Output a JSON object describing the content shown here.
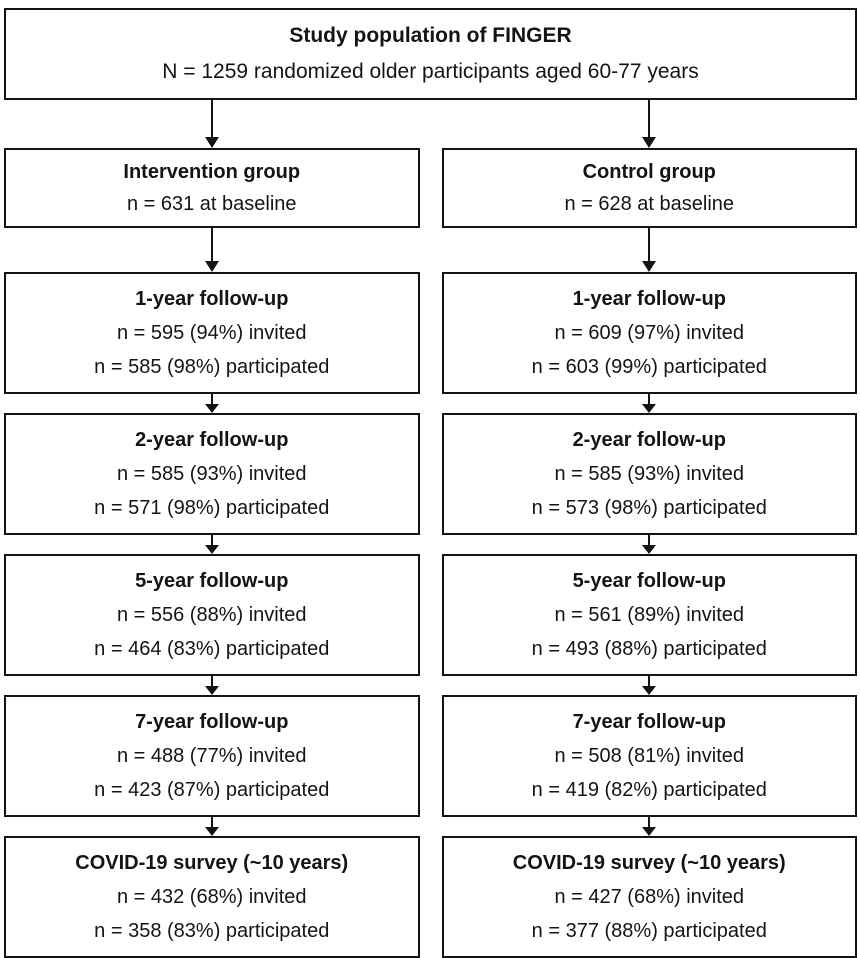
{
  "diagram": {
    "title_box": {
      "title": "Study population of FINGER",
      "subtitle": "N = 1259 randomized older participants aged 60-77 years"
    },
    "columns": [
      {
        "id": "intervention",
        "group_box": {
          "title": "Intervention group",
          "subtitle": "n = 631 at baseline"
        },
        "stages": [
          {
            "title": "1-year follow-up",
            "invited": "n = 595 (94%) invited",
            "participated": "n = 585 (98%) participated"
          },
          {
            "title": "2-year follow-up",
            "invited": "n = 585 (93%) invited",
            "participated": "n = 571 (98%) participated"
          },
          {
            "title": "5-year follow-up",
            "invited": "n = 556 (88%) invited",
            "participated": "n = 464 (83%) participated"
          },
          {
            "title": "7-year follow-up",
            "invited": "n = 488 (77%) invited",
            "participated": "n = 423 (87%) participated"
          },
          {
            "title": "COVID-19 survey (~10 years)",
            "invited": "n = 432 (68%) invited",
            "participated": "n = 358 (83%) participated"
          }
        ]
      },
      {
        "id": "control",
        "group_box": {
          "title": "Control group",
          "subtitle": "n = 628 at baseline"
        },
        "stages": [
          {
            "title": "1-year follow-up",
            "invited": "n = 609 (97%) invited",
            "participated": "n = 603 (99%) participated"
          },
          {
            "title": "2-year follow-up",
            "invited": "n = 585 (93%) invited",
            "participated": "n = 573 (98%) participated"
          },
          {
            "title": "5-year follow-up",
            "invited": "n = 561 (89%) invited",
            "participated": "n = 493 (88%) participated"
          },
          {
            "title": "7-year follow-up",
            "invited": "n = 508 (81%) invited",
            "participated": "n = 419 (82%) participated"
          },
          {
            "title": "COVID-19 survey (~10 years)",
            "invited": "n = 427 (68%) invited",
            "participated": "n = 377 (88%) participated"
          }
        ]
      }
    ],
    "colors": {
      "border": "#141414",
      "text": "#141414",
      "background": "#ffffff"
    }
  }
}
